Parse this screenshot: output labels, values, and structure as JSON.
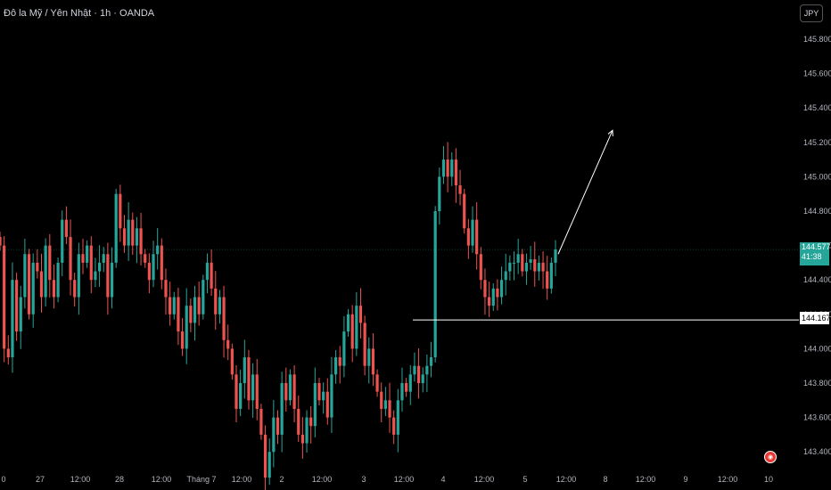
{
  "header": {
    "title": "Đô la Mỹ / Yên Nhật · 1h · OANDA"
  },
  "currency_button": "JPY",
  "last_price": {
    "value": "144.577",
    "countdown": "41:38"
  },
  "level_label": "144.167",
  "colors": {
    "up": "#26a69a",
    "down": "#ef5350",
    "background": "#000000",
    "level_line": "#ffffff"
  },
  "chart_data": {
    "type": "candlestick",
    "title": "Đô la Mỹ / Yên Nhật · 1h · OANDA",
    "ylim": [
      143.3,
      145.9
    ],
    "y_ticks": [
      "145.800",
      "145.600",
      "145.400",
      "145.200",
      "145.000",
      "144.800",
      "144.600",
      "144.400",
      "144.200",
      "144.000",
      "143.800",
      "143.600",
      "143.400"
    ],
    "x_ticks": [
      "0",
      "27",
      "12:00",
      "28",
      "12:00",
      "Tháng 7",
      "12:00",
      "2",
      "12:00",
      "3",
      "12:00",
      "4",
      "12:00",
      "5",
      "12:00",
      "8",
      "12:00",
      "9",
      "12:00",
      "10"
    ],
    "close_series": [
      144.6,
      144.0,
      143.95,
      144.4,
      144.1,
      144.3,
      144.55,
      144.2,
      144.5,
      144.45,
      144.3,
      144.6,
      144.4,
      144.3,
      144.5,
      144.75,
      144.65,
      144.4,
      144.3,
      144.55,
      144.5,
      144.6,
      144.4,
      144.45,
      144.5,
      144.55,
      144.3,
      144.5,
      144.9,
      144.7,
      144.6,
      144.75,
      144.6,
      144.7,
      144.55,
      144.5,
      144.4,
      144.55,
      144.6,
      144.4,
      144.3,
      144.2,
      144.3,
      144.1,
      144.0,
      144.25,
      144.15,
      144.3,
      144.2,
      144.4,
      144.5,
      144.35,
      144.2,
      144.3,
      144.05,
      144.0,
      143.85,
      143.65,
      143.8,
      143.95,
      143.7,
      143.85,
      143.65,
      143.5,
      143.25,
      143.4,
      143.6,
      143.5,
      143.8,
      143.7,
      143.85,
      143.65,
      143.5,
      143.45,
      143.6,
      143.55,
      143.8,
      143.7,
      143.75,
      143.6,
      143.85,
      143.95,
      143.9,
      144.1,
      144.2,
      144.0,
      144.25,
      144.15,
      143.9,
      144.0,
      143.85,
      143.75,
      143.65,
      143.7,
      143.6,
      143.5,
      143.7,
      143.8,
      143.75,
      143.85,
      143.9,
      143.8,
      143.85,
      143.9,
      143.95,
      144.8,
      145.0,
      145.1,
      145.0,
      145.1,
      144.95,
      144.9,
      144.7,
      144.6,
      144.75,
      144.55,
      144.4,
      144.3,
      144.25,
      144.35,
      144.3,
      144.4,
      144.45,
      144.5,
      144.5,
      144.55,
      144.45,
      144.5,
      144.52,
      144.45,
      144.5,
      144.45,
      144.35,
      144.5,
      144.577
    ],
    "levels": [
      {
        "value": 144.167,
        "label": "144.167",
        "type": "horizontal-line"
      },
      {
        "value": 144.577,
        "label": "144.577",
        "type": "last-price"
      }
    ],
    "annotations": [
      {
        "type": "arrow",
        "from": {
          "x": "5 (~20:00)",
          "y": 144.55
        },
        "to": {
          "x": "8 (~11:00)",
          "y": 145.27
        }
      }
    ]
  }
}
